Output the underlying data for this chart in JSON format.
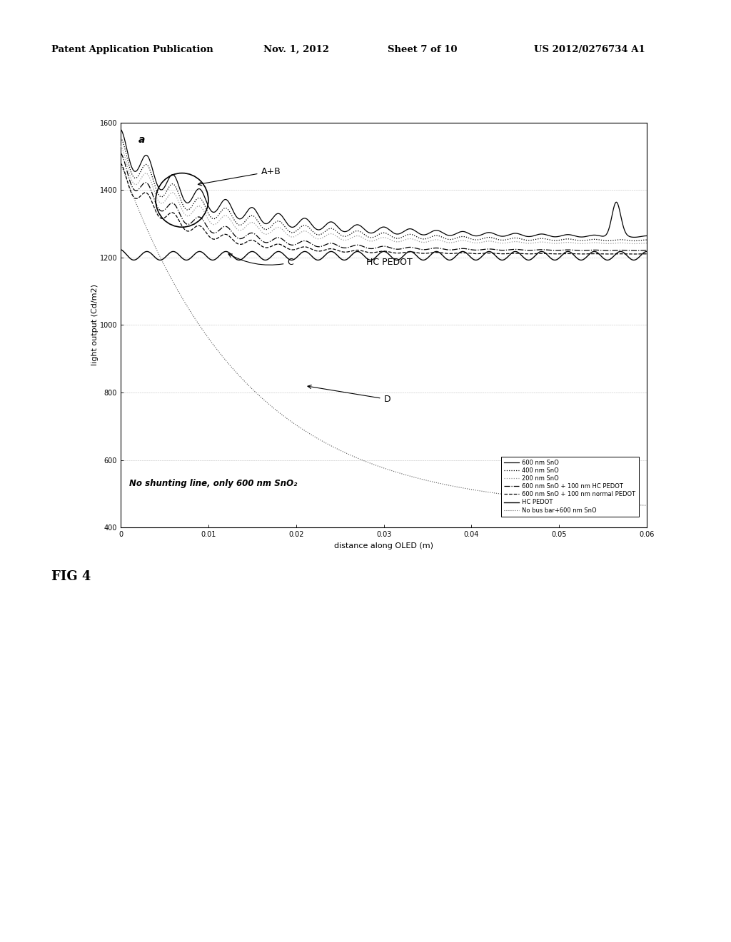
{
  "title_header": "Patent Application Publication",
  "date": "Nov. 1, 2012",
  "sheet": "Sheet 7 of 10",
  "patent_num": "US 2012/0276734 A1",
  "fig_label": "FIG 4",
  "plot_label": "a",
  "xlabel": "distance along OLED (m)",
  "ylabel": "light output (Cd/m2)",
  "xlim": [
    0,
    0.06
  ],
  "ylim": [
    400,
    1600
  ],
  "yticks": [
    400,
    600,
    800,
    1000,
    1200,
    1400,
    1600
  ],
  "xticks": [
    0,
    0.01,
    0.02,
    0.03,
    0.04,
    0.05,
    0.06
  ],
  "xtick_labels": [
    "0",
    "0.01",
    "0.02",
    "0.03",
    "0.04",
    "0.05",
    "0.06"
  ],
  "legend_entries": [
    "600 nm SnO",
    "400 nm SnO",
    "200 nm SnO",
    "600 nm SnO + 100 nm HC PEDOT",
    "600 nm SnO + 100 nm normal PEDOT",
    "HC PEDOT",
    "No bus bar+600 nm SnO"
  ],
  "background_color": "#ffffff",
  "grid_color": "#888888"
}
